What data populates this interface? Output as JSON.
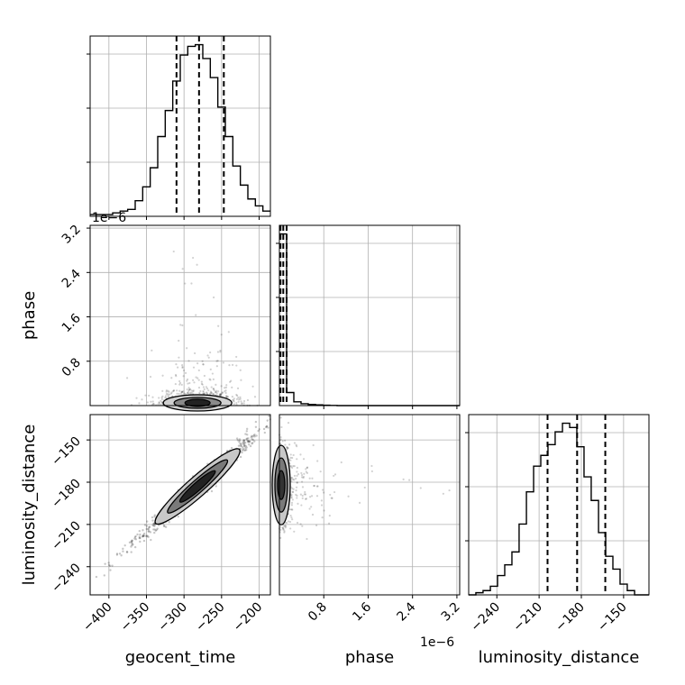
{
  "chart_data": {
    "type": "corner",
    "grid": true,
    "parameters": [
      "geocent_time",
      "phase",
      "luminosity_distance"
    ],
    "axis_labels": {
      "geocent_time": "geocent_time",
      "phase": "phase",
      "luminosity_distance": "luminosity_distance"
    },
    "ticks": {
      "geocent_time": [
        "−400",
        "−350",
        "−300",
        "−250",
        "−200"
      ],
      "phase": [
        "0.8",
        "1.6",
        "2.4",
        "3.2"
      ],
      "luminosity_distance": [
        "−240",
        "−210",
        "−180",
        "−150"
      ]
    },
    "offset_text": {
      "phase_y": "1e−6",
      "phase_x": "1e−6"
    },
    "ranges": {
      "geocent_time": [
        -425,
        -185
      ],
      "phase": [
        0.0,
        3.25
      ],
      "luminosity_distance": [
        -260,
        -132
      ]
    },
    "histograms": [
      {
        "param": "geocent_time",
        "bin_edges": [
          -425,
          -415,
          -405,
          -395,
          -385,
          -375,
          -365,
          -355,
          -345,
          -335,
          -325,
          -315,
          -305,
          -295,
          -285,
          -275,
          -265,
          -255,
          -245,
          -235,
          -225,
          -215,
          -205,
          -195,
          -185
        ],
        "counts": [
          1,
          1,
          1,
          2,
          3,
          4,
          9,
          17,
          28,
          46,
          61,
          78,
          93,
          98,
          99,
          91,
          80,
          63,
          46,
          29,
          18,
          10,
          6,
          3
        ],
        "quantiles": [
          -310,
          -280,
          -247
        ]
      },
      {
        "param": "phase",
        "bin_edges": [
          0,
          0.13,
          0.26,
          0.39,
          0.52,
          0.65,
          0.78,
          0.91,
          1.04,
          1.17,
          1.3,
          1.43,
          1.56,
          1.69,
          1.82,
          1.95,
          2.08,
          2.21,
          2.34,
          2.47,
          2.6,
          2.73,
          2.86,
          2.99,
          3.12,
          3.25
        ],
        "counts": [
          92,
          7,
          2,
          1,
          0.6,
          0.4,
          0.2,
          0.1,
          0,
          0,
          0,
          0,
          0,
          0,
          0,
          0,
          0,
          0,
          0,
          0,
          0,
          0,
          0,
          0,
          0
        ],
        "quantiles": [
          0.02,
          0.07,
          0.13
        ]
      },
      {
        "param": "luminosity_distance",
        "bin_edges": [
          -260,
          -254.9,
          -249.8,
          -244.6,
          -239.5,
          -234.4,
          -229.3,
          -224.2,
          -219.0,
          -213.9,
          -208.8,
          -203.7,
          -198.6,
          -193.4,
          -188.3,
          -183.2,
          -178.1,
          -173.0,
          -167.8,
          -162.7,
          -157.6,
          -152.5,
          -147.4,
          -142.2,
          -137.1,
          -132
        ],
        "counts": [
          0,
          1,
          2,
          4,
          9,
          14,
          20,
          33,
          48,
          60,
          65,
          70,
          76,
          80,
          78,
          69,
          55,
          44,
          29,
          18,
          12,
          5,
          2,
          0,
          0
        ],
        "quantiles": [
          -204,
          -183,
          -163
        ]
      }
    ],
    "joint_2d": [
      {
        "x": "geocent_time",
        "y": "phase",
        "center": [
          -282,
          0.03
        ]
      },
      {
        "x": "geocent_time",
        "y": "luminosity_distance",
        "correlation": "positive",
        "center": [
          -282,
          -183
        ]
      },
      {
        "x": "phase",
        "y": "luminosity_distance",
        "center": [
          0.04,
          -182
        ]
      }
    ]
  }
}
